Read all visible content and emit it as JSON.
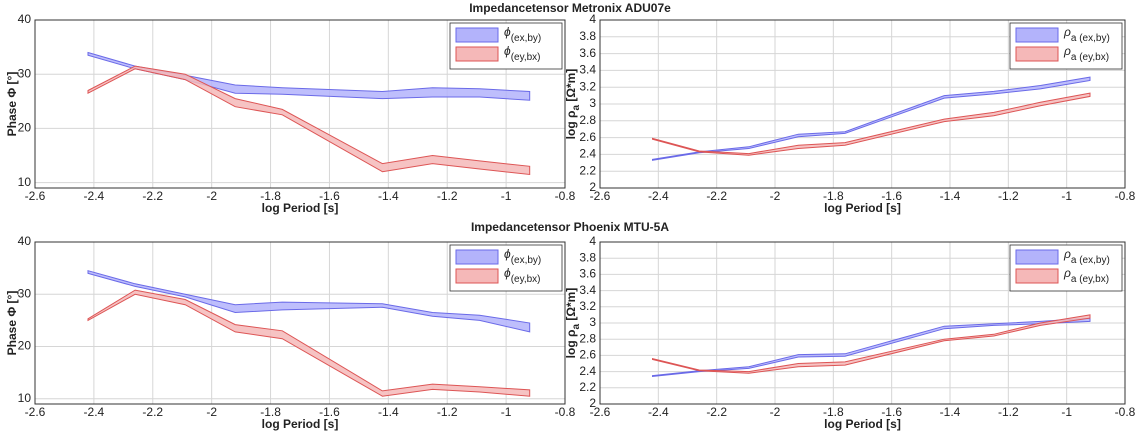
{
  "chart_data": [
    {
      "type": "band",
      "title": "Impedancetensor Metronix ADU07e",
      "xlabel": "log Period [s]",
      "ylabel": {
        "text": "Phase Φ [°]"
      },
      "xlim": [
        -2.6,
        -0.8
      ],
      "xticks": [
        -2.6,
        -2.4,
        -2.2,
        -2,
        -1.8,
        -1.6,
        -1.4,
        -1.2,
        -1,
        -0.8
      ],
      "ylim": [
        9,
        40
      ],
      "yticks": [
        10,
        20,
        30,
        40
      ],
      "grid": true,
      "legend": "upper right",
      "x": [
        -2.42,
        -2.26,
        -2.09,
        -1.92,
        -1.76,
        -1.42,
        -1.25,
        -1.09,
        -0.92
      ],
      "series": [
        {
          "name": "ϕ",
          "subscript": "(ex,by)",
          "color": "#b3b3fb",
          "edgecolor": "#6a6ae8",
          "low": [
            33.5,
            31,
            29,
            26.5,
            26.3,
            25.5,
            25.8,
            25.8,
            25.2
          ],
          "high": [
            34,
            31.5,
            29.8,
            28,
            27.5,
            26.8,
            27.5,
            27.3,
            26.8
          ]
        },
        {
          "name": "ϕ",
          "subscript": "(ey,bx)",
          "color": "#f5b8b8",
          "edgecolor": "#dd5555",
          "low": [
            26.5,
            31,
            29,
            24,
            22.5,
            12,
            13.5,
            12.5,
            11.5
          ],
          "high": [
            27,
            31.5,
            30,
            25.5,
            23.5,
            13.5,
            15,
            14,
            13
          ]
        }
      ]
    },
    {
      "type": "band",
      "xlabel": "log Period [s]",
      "ylabel": {
        "text": "log ρ",
        "subscript": "a",
        "suffix": " [Ω*m]"
      },
      "xlim": [
        -2.6,
        -0.8
      ],
      "xticks": [
        -2.6,
        -2.4,
        -2.2,
        -2,
        -1.8,
        -1.6,
        -1.4,
        -1.2,
        -1,
        -0.8
      ],
      "ylim": [
        2,
        4
      ],
      "yticks": [
        2,
        2.2,
        2.4,
        2.6,
        2.8,
        3,
        3.2,
        3.4,
        3.6,
        3.8,
        4
      ],
      "grid": true,
      "legend": "upper right",
      "x": [
        -2.42,
        -2.26,
        -2.09,
        -1.92,
        -1.76,
        -1.42,
        -1.25,
        -1.09,
        -0.92
      ],
      "series": [
        {
          "name": "ρ",
          "subscript": "a (ex,by)",
          "color": "#b3b3fb",
          "edgecolor": "#6a6ae8",
          "low": [
            2.33,
            2.42,
            2.47,
            2.61,
            2.65,
            3.07,
            3.12,
            3.18,
            3.28
          ],
          "high": [
            2.34,
            2.43,
            2.49,
            2.64,
            2.67,
            3.1,
            3.15,
            3.22,
            3.32
          ]
        },
        {
          "name": "ρ",
          "subscript": "a (ey,bx)",
          "color": "#f5b8b8",
          "edgecolor": "#dd5555",
          "low": [
            2.58,
            2.43,
            2.39,
            2.47,
            2.51,
            2.79,
            2.86,
            2.98,
            3.09
          ],
          "high": [
            2.59,
            2.44,
            2.41,
            2.51,
            2.54,
            2.82,
            2.9,
            3.02,
            3.13
          ]
        }
      ]
    },
    {
      "type": "band",
      "title": "Impedancetensor Phoenix MTU-5A",
      "xlabel": "log Period [s]",
      "ylabel": {
        "text": "Phase Φ [°]"
      },
      "xlim": [
        -2.6,
        -0.8
      ],
      "xticks": [
        -2.6,
        -2.4,
        -2.2,
        -2,
        -1.8,
        -1.6,
        -1.4,
        -1.2,
        -1,
        -0.8
      ],
      "ylim": [
        9,
        40
      ],
      "yticks": [
        10,
        20,
        30,
        40
      ],
      "grid": true,
      "legend": "upper right",
      "x": [
        -2.42,
        -2.26,
        -2.09,
        -1.92,
        -1.76,
        -1.42,
        -1.25,
        -1.09,
        -0.92
      ],
      "series": [
        {
          "name": "ϕ",
          "subscript": "(ex,by)",
          "color": "#b3b3fb",
          "edgecolor": "#6a6ae8",
          "low": [
            34,
            31.5,
            29.5,
            26.5,
            27,
            27.5,
            25.8,
            25,
            22.8
          ],
          "high": [
            34.5,
            32,
            30,
            28,
            28.5,
            28.2,
            26.5,
            26,
            24.5
          ]
        },
        {
          "name": "ϕ",
          "subscript": "(ey,bx)",
          "color": "#f5b8b8",
          "edgecolor": "#dd5555",
          "low": [
            25,
            30,
            28,
            22.8,
            21.5,
            10.5,
            11.8,
            11.3,
            10.5
          ],
          "high": [
            25.3,
            30.8,
            29,
            24.2,
            23,
            11.5,
            12.8,
            12.3,
            11.7
          ]
        }
      ]
    },
    {
      "type": "band",
      "xlabel": "log Period [s]",
      "ylabel": {
        "text": "log ρ",
        "subscript": "a",
        "suffix": " [Ω*m]"
      },
      "xlim": [
        -2.6,
        -0.8
      ],
      "xticks": [
        -2.6,
        -2.4,
        -2.2,
        -2,
        -1.8,
        -1.6,
        -1.4,
        -1.2,
        -1,
        -0.8
      ],
      "ylim": [
        2,
        4
      ],
      "yticks": [
        2,
        2.2,
        2.4,
        2.6,
        2.8,
        3,
        3.2,
        3.4,
        3.6,
        3.8,
        4
      ],
      "grid": true,
      "legend": "upper right",
      "x": [
        -2.42,
        -2.26,
        -2.09,
        -1.92,
        -1.76,
        -1.42,
        -1.25,
        -1.09,
        -0.92
      ],
      "series": [
        {
          "name": "ρ",
          "subscript": "a (ex,by)",
          "color": "#b3b3fb",
          "edgecolor": "#6a6ae8",
          "low": [
            2.34,
            2.4,
            2.44,
            2.58,
            2.59,
            2.93,
            2.97,
            2.99,
            3.02
          ],
          "high": [
            2.35,
            2.41,
            2.46,
            2.61,
            2.62,
            2.96,
            2.99,
            3.02,
            3.06
          ]
        },
        {
          "name": "ρ",
          "subscript": "a (ey,bx)",
          "color": "#f5b8b8",
          "edgecolor": "#dd5555",
          "low": [
            2.55,
            2.41,
            2.38,
            2.46,
            2.48,
            2.78,
            2.84,
            2.97,
            3.06
          ],
          "high": [
            2.56,
            2.42,
            2.4,
            2.5,
            2.52,
            2.8,
            2.86,
            3.0,
            3.1
          ]
        }
      ]
    }
  ]
}
